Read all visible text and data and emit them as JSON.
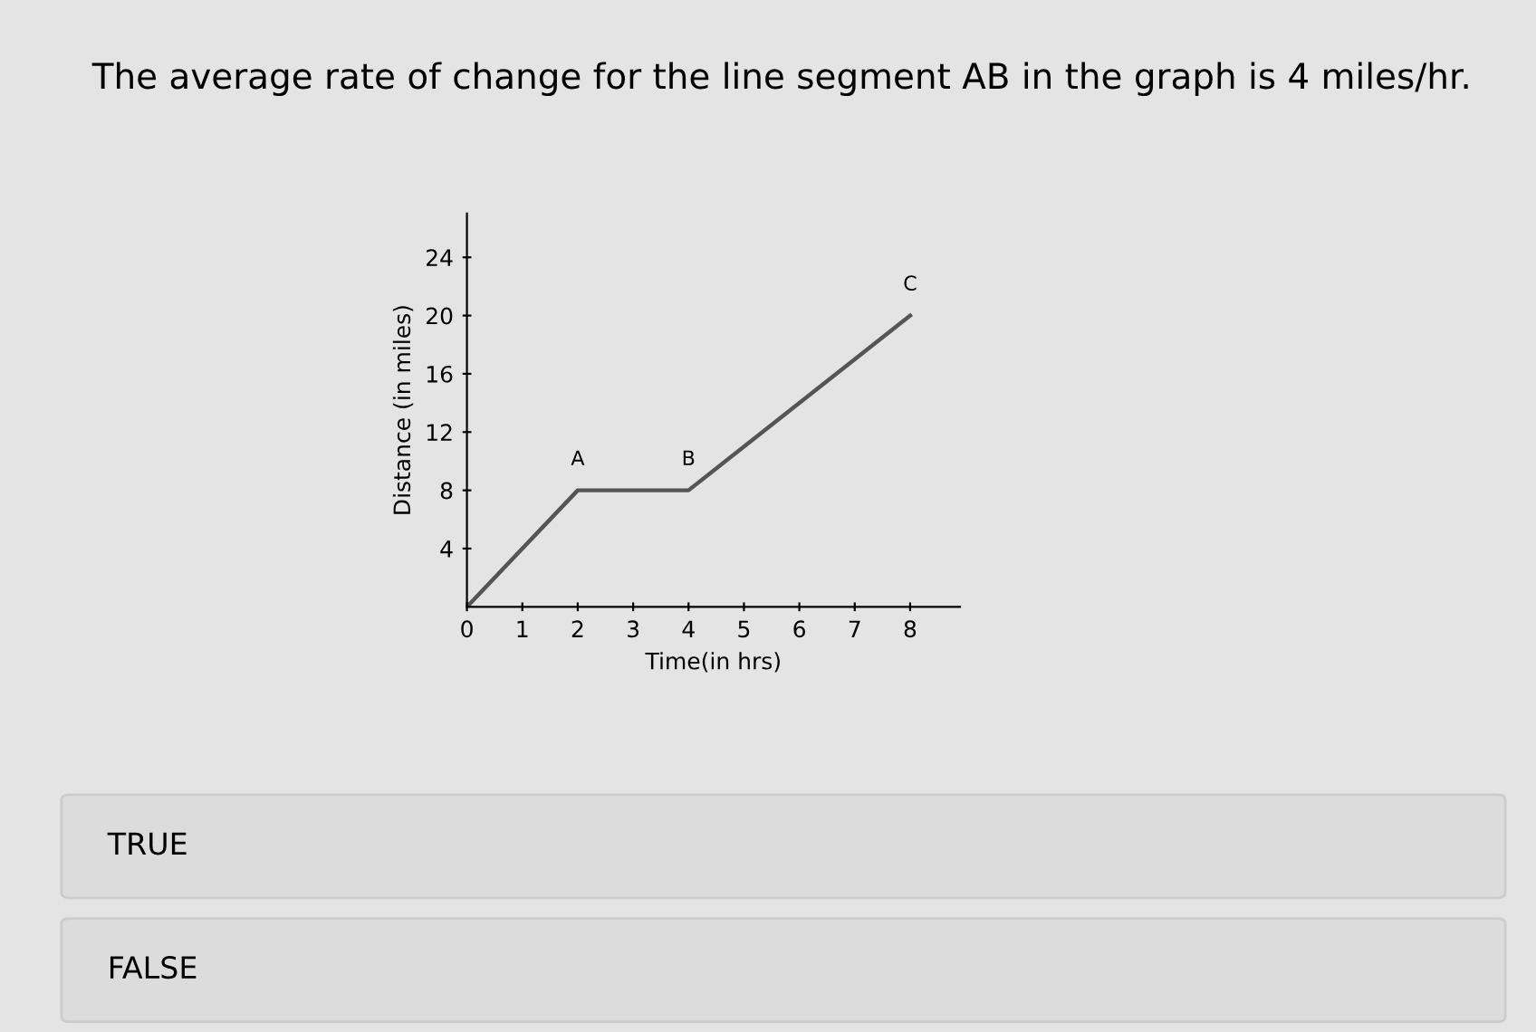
{
  "chart_data": {
    "type": "line",
    "title": "The average rate of change for the line segment AB in the graph is 4 miles/hr.",
    "xlabel": "Time(in hrs)",
    "ylabel": "Distance (in miles)",
    "x": [
      0,
      2,
      4,
      8
    ],
    "series": [
      {
        "color": "#555555",
        "values": [
          0,
          8,
          8,
          20
        ]
      }
    ],
    "xlim": [
      0,
      8.9
    ],
    "xticks": [
      0,
      1,
      2,
      3,
      4,
      5,
      6,
      7,
      8
    ],
    "ylim": [
      0,
      27
    ],
    "yticks": [
      4,
      8,
      12,
      16,
      20,
      24
    ],
    "grid": false,
    "marker": "none",
    "line_style": "solid",
    "annotations": [
      {
        "text": "A",
        "x": 2,
        "y": 8
      },
      {
        "text": "B",
        "x": 4,
        "y": 8
      },
      {
        "text": "C",
        "x": 8,
        "y": 20
      },
      "TRUE",
      "FALSE"
    ]
  }
}
